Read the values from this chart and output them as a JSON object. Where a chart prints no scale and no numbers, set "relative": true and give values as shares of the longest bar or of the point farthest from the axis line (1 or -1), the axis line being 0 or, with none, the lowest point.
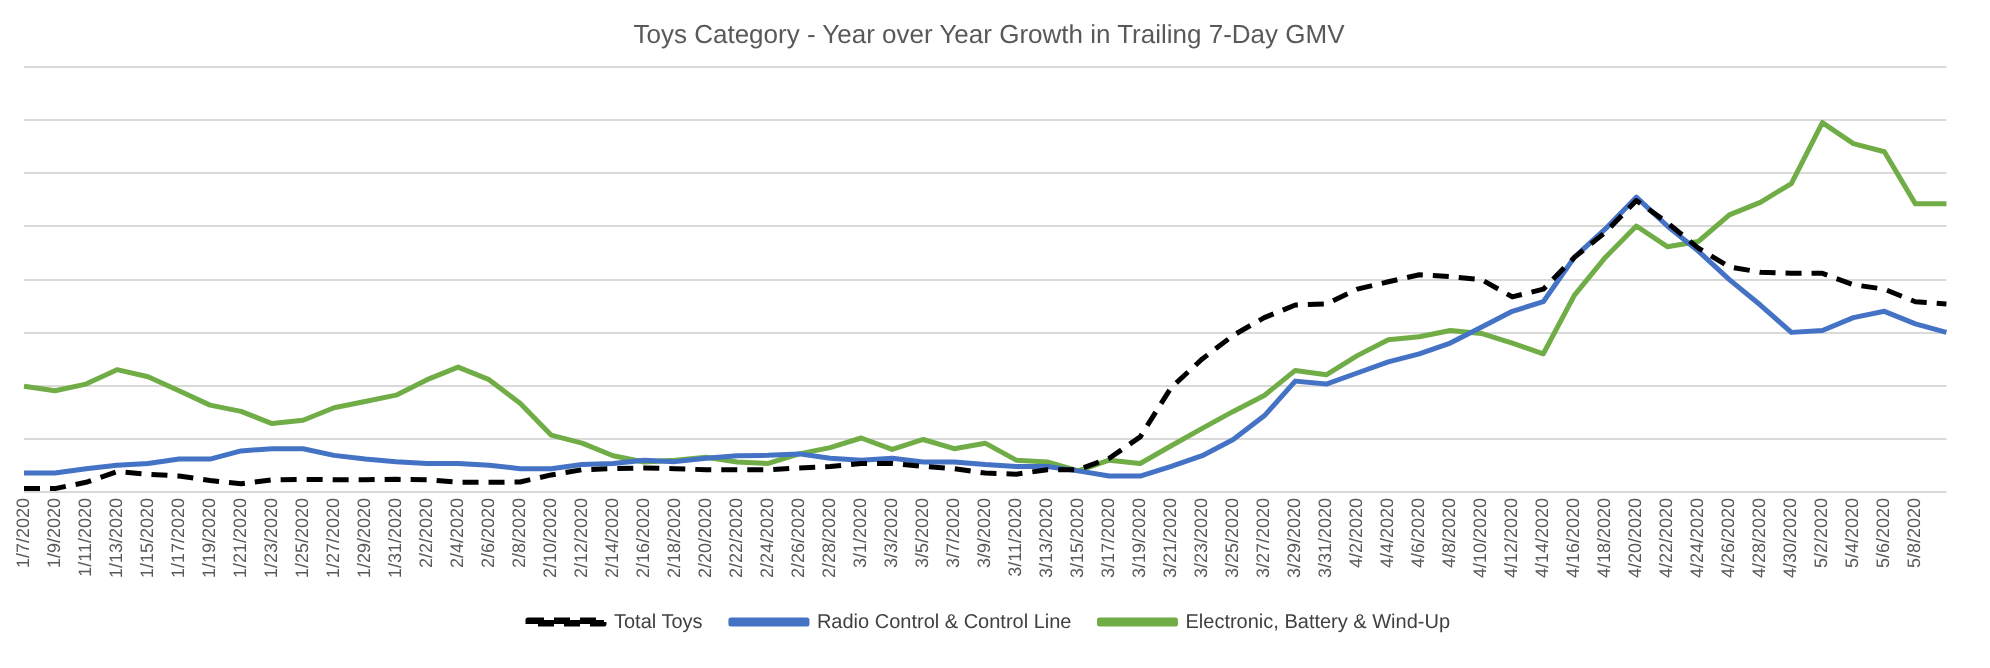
{
  "chart_data": {
    "type": "line",
    "title": "Toys Category - Year over Year Growth in Trailing 7-Day GMV",
    "relative": true,
    "grid": "y",
    "legend": "bottom",
    "categories": [
      "1/7/2020",
      "1/9/2020",
      "1/11/2020",
      "1/13/2020",
      "1/15/2020",
      "1/17/2020",
      "1/19/2020",
      "1/21/2020",
      "1/23/2020",
      "1/25/2020",
      "1/27/2020",
      "1/29/2020",
      "1/31/2020",
      "2/2/2020",
      "2/4/2020",
      "2/6/2020",
      "2/8/2020",
      "2/10/2020",
      "2/12/2020",
      "2/14/2020",
      "2/16/2020",
      "2/18/2020",
      "2/20/2020",
      "2/22/2020",
      "2/24/2020",
      "2/26/2020",
      "2/28/2020",
      "3/1/2020",
      "3/3/2020",
      "3/5/2020",
      "3/7/2020",
      "3/9/2020",
      "3/11/2020",
      "3/13/2020",
      "3/15/2020",
      "3/17/2020",
      "3/19/2020",
      "3/21/2020",
      "3/23/2020",
      "3/25/2020",
      "3/27/2020",
      "3/29/2020",
      "3/31/2020",
      "4/2/2020",
      "4/4/2020",
      "4/6/2020",
      "4/8/2020",
      "4/10/2020",
      "4/12/2020",
      "4/14/2020",
      "4/16/2020",
      "4/18/2020",
      "4/20/2020",
      "4/22/2020",
      "4/24/2020",
      "4/26/2020",
      "4/28/2020",
      "4/30/2020",
      "5/2/2020",
      "5/4/2020",
      "5/6/2020",
      "5/8/2020",
      null
    ],
    "series": [
      {
        "name": "Total Toys",
        "color": "#000000",
        "line_style": "dashed",
        "values": [
          0.009,
          0.009,
          0.026,
          0.055,
          0.048,
          0.043,
          0.031,
          0.022,
          0.033,
          0.034,
          0.033,
          0.033,
          0.034,
          0.033,
          0.026,
          0.026,
          0.027,
          0.046,
          0.06,
          0.063,
          0.065,
          0.063,
          0.06,
          0.06,
          0.06,
          0.065,
          0.069,
          0.077,
          0.077,
          0.069,
          0.063,
          0.051,
          0.048,
          0.06,
          0.06,
          0.091,
          0.149,
          0.283,
          0.36,
          0.424,
          0.472,
          0.506,
          0.509,
          0.549,
          0.569,
          0.588,
          0.583,
          0.575,
          0.528,
          0.549,
          0.635,
          0.703,
          0.789,
          0.729,
          0.66,
          0.609,
          0.595,
          0.592,
          0.592,
          0.561,
          0.549,
          0.515,
          0.509
        ]
      },
      {
        "name": "Radio Control & Control Line",
        "color": "#4472c4",
        "line_style": "solid",
        "values": [
          0.051,
          0.051,
          0.063,
          0.072,
          0.077,
          0.089,
          0.089,
          0.111,
          0.117,
          0.117,
          0.099,
          0.089,
          0.082,
          0.077,
          0.077,
          0.072,
          0.063,
          0.063,
          0.074,
          0.077,
          0.086,
          0.082,
          0.091,
          0.098,
          0.099,
          0.103,
          0.091,
          0.086,
          0.091,
          0.081,
          0.081,
          0.074,
          0.069,
          0.069,
          0.057,
          0.043,
          0.043,
          0.069,
          0.098,
          0.142,
          0.206,
          0.3,
          0.292,
          0.322,
          0.352,
          0.374,
          0.403,
          0.446,
          0.489,
          0.515,
          0.635,
          0.712,
          0.798,
          0.72,
          0.652,
          0.575,
          0.506,
          0.432,
          0.437,
          0.472,
          0.489,
          0.455,
          0.432
        ]
      },
      {
        "name": "Electronic, Battery & Wind-Up",
        "color": "#70ad47",
        "line_style": "solid",
        "values": [
          0.286,
          0.274,
          0.292,
          0.331,
          0.312,
          0.274,
          0.235,
          0.218,
          0.185,
          0.194,
          0.228,
          0.245,
          0.262,
          0.304,
          0.338,
          0.304,
          0.24,
          0.154,
          0.132,
          0.098,
          0.081,
          0.086,
          0.094,
          0.081,
          0.077,
          0.103,
          0.12,
          0.146,
          0.115,
          0.142,
          0.117,
          0.132,
          0.086,
          0.081,
          0.057,
          0.086,
          0.077,
          0.125,
          0.172,
          0.218,
          0.261,
          0.329,
          0.317,
          0.369,
          0.412,
          0.42,
          0.437,
          0.429,
          0.403,
          0.374,
          0.532,
          0.635,
          0.72,
          0.664,
          0.678,
          0.75,
          0.784,
          0.835,
          1,
          0.943,
          0.921,
          0.78,
          0.78
        ]
      }
    ]
  }
}
